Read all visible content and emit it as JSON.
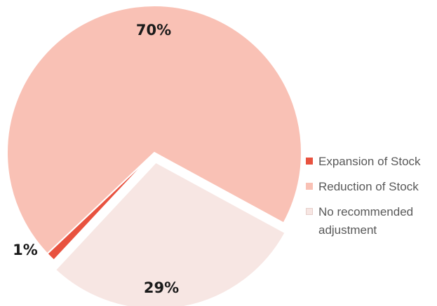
{
  "chart_data": {
    "type": "pie",
    "slices": [
      {
        "label": "Expansion of Stock",
        "value": 1,
        "display": "1%",
        "color": "#e8523f"
      },
      {
        "label": "Reduction of Stock",
        "value": 70,
        "display": "70%",
        "color": "#f9c1b5"
      },
      {
        "label": "No recommended adjustment",
        "value": 29,
        "display": "29%",
        "color": "#f7e6e3",
        "exploded": true
      }
    ],
    "legend": {
      "position": "right",
      "entries": [
        "Expansion of Stock",
        "Reduction of Stock",
        "No recommended adjustment"
      ]
    }
  }
}
